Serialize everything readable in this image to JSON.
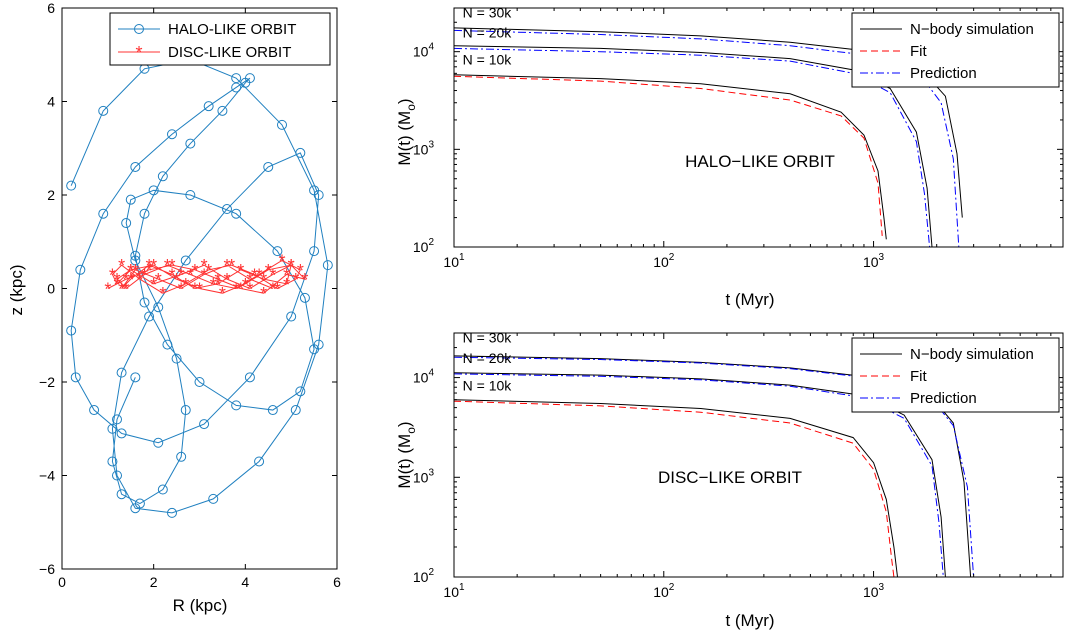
{
  "colors": {
    "halo": "#2080c0",
    "disc": "#ff3333",
    "nbody": "#000000",
    "fit": "#ff0000",
    "prediction": "#0000ff"
  },
  "chart_data": [
    {
      "id": "orbits",
      "type": "line",
      "xlabel": "R (kpc)",
      "ylabel": "z (kpc)",
      "xlim": [
        0,
        6
      ],
      "ylim": [
        -6,
        6
      ],
      "xticks": [
        0,
        2,
        4,
        6
      ],
      "yticks": [
        -6,
        -4,
        -2,
        0,
        2,
        4,
        6
      ],
      "legend_position": "top-right",
      "series": [
        {
          "name": "HALO-LIKE ORBIT",
          "marker": "circle",
          "x": [
            0.2,
            0.9,
            1.8,
            2.8,
            3.8,
            4.8,
            5.5,
            5.8,
            5.6,
            5.1,
            4.3,
            3.3,
            2.4,
            1.6,
            1.2,
            1.1,
            1.3,
            1.9,
            2.7,
            3.6,
            4.5,
            5.2,
            5.6,
            5.5,
            5.0,
            4.1,
            3.1,
            2.1,
            1.3,
            0.7,
            0.3,
            0.2,
            0.4,
            0.9,
            1.6,
            2.4,
            3.2,
            3.8,
            4.1,
            4.0,
            3.5,
            2.8,
            2.2,
            1.8,
            1.6,
            1.8,
            2.3,
            3.0,
            3.8,
            4.6,
            5.2,
            5.5,
            5.3,
            4.7,
            3.8,
            2.8,
            2.0,
            1.5,
            1.4,
            1.6,
            2.1,
            2.5,
            2.7,
            2.6,
            2.2,
            1.7,
            1.3,
            1.1,
            1.2,
            1.6
          ],
          "y": [
            2.2,
            3.8,
            4.7,
            4.9,
            4.5,
            3.5,
            2.1,
            0.5,
            -1.2,
            -2.6,
            -3.7,
            -4.5,
            -4.8,
            -4.7,
            -4.0,
            -3.0,
            -1.8,
            -0.6,
            0.6,
            1.7,
            2.6,
            2.9,
            2.0,
            0.8,
            -0.6,
            -1.9,
            -2.9,
            -3.3,
            -3.1,
            -2.6,
            -1.9,
            -0.9,
            0.4,
            1.6,
            2.6,
            3.3,
            3.9,
            4.3,
            4.5,
            4.4,
            3.8,
            3.1,
            2.4,
            1.6,
            0.7,
            -0.3,
            -1.2,
            -2.0,
            -2.5,
            -2.6,
            -2.2,
            -1.3,
            -0.2,
            0.8,
            1.6,
            2.0,
            2.1,
            1.9,
            1.4,
            0.6,
            -0.4,
            -1.5,
            -2.6,
            -3.6,
            -4.3,
            -4.6,
            -4.4,
            -3.7,
            -2.8,
            -1.9
          ]
        },
        {
          "name": "DISC-LIKE ORBIT",
          "marker": "star",
          "x": [
            1.0,
            1.4,
            1.9,
            2.4,
            2.9,
            3.4,
            3.9,
            4.4,
            4.9,
            5.3,
            5.0,
            4.5,
            4.0,
            3.5,
            3.0,
            2.5,
            2.0,
            1.5,
            1.2,
            1.1,
            1.3,
            1.7,
            2.2,
            2.7,
            3.2,
            3.7,
            4.2,
            4.7,
            5.1,
            5.2,
            4.8,
            4.3,
            3.8,
            3.3,
            2.8,
            2.3,
            1.8,
            1.4,
            1.2,
            1.5,
            2.0,
            2.6,
            3.1,
            3.6,
            4.1,
            4.6,
            5.0,
            4.9,
            4.4,
            3.9,
            3.4,
            2.9,
            2.4,
            1.9,
            1.5,
            1.3,
            1.6,
            2.1,
            2.6,
            3.1,
            3.6,
            4.1,
            4.6
          ],
          "y": [
            0.0,
            0.2,
            0.4,
            0.5,
            0.4,
            0.2,
            0.0,
            -0.1,
            0.3,
            0.2,
            0.5,
            0.4,
            0.1,
            -0.1,
            0.0,
            0.2,
            0.5,
            0.4,
            0.1,
            0.3,
            0.5,
            0.2,
            -0.1,
            0.1,
            0.4,
            0.5,
            0.3,
            0.0,
            0.2,
            0.4,
            0.6,
            0.3,
            0.0,
            0.1,
            0.3,
            0.5,
            0.3,
            0.0,
            0.2,
            0.4,
            0.1,
            0.3,
            0.5,
            0.2,
            0.0,
            0.3,
            0.5,
            0.1,
            0.2,
            0.4,
            0.1,
            0.0,
            0.3,
            0.5,
            0.2,
            0.0,
            0.4,
            0.2,
            0.0,
            0.3,
            0.5,
            0.2,
            0.0
          ]
        }
      ]
    },
    {
      "id": "halo",
      "type": "line",
      "annotation": "HALO−LIKE ORBIT",
      "xlabel": "t (Myr)",
      "ylabel": "M(t) (M",
      "ylabel_sub": "o",
      "ylabel_end": ")",
      "xscale": "log",
      "yscale": "log",
      "xlim": [
        10,
        8000
      ],
      "ylim": [
        100,
        28000
      ],
      "xticks": [
        10,
        100,
        1000
      ],
      "xtick_labels": [
        "10",
        "10",
        "10"
      ],
      "xtick_exps": [
        "1",
        "2",
        "3"
      ],
      "yticks": [
        100,
        1000,
        10000
      ],
      "ytick_labels": [
        "10",
        "10",
        "10"
      ],
      "ytick_exps": [
        "2",
        "3",
        "4"
      ],
      "legend_position": "top-right",
      "n_labels": [
        {
          "text": "N = 30k",
          "t": 11,
          "m": 22500
        },
        {
          "text": "N = 20k",
          "t": 11,
          "m": 14000
        },
        {
          "text": "N = 10k",
          "t": 11,
          "m": 7400
        }
      ],
      "series": [
        {
          "name": "N−body simulation",
          "style": "solid",
          "label_group": "N = 30k",
          "t": [
            10,
            50,
            150,
            400,
            1000,
            1600,
            2200,
            2500,
            2650
          ],
          "m": [
            17500,
            16000,
            14500,
            12500,
            10000,
            7500,
            3500,
            900,
            200
          ]
        },
        {
          "name": "N−body simulation",
          "style": "solid",
          "label_group": "N = 20k",
          "t": [
            10,
            50,
            150,
            400,
            800,
            1200,
            1600,
            1800,
            1900
          ],
          "m": [
            11500,
            10800,
            9800,
            8500,
            6500,
            4200,
            1500,
            400,
            100
          ]
        },
        {
          "name": "N−body simulation",
          "style": "solid",
          "label_group": "N = 10k",
          "t": [
            10,
            50,
            150,
            400,
            700,
            900,
            1050,
            1120,
            1150
          ],
          "m": [
            5800,
            5300,
            4700,
            3700,
            2400,
            1400,
            600,
            200,
            120
          ]
        },
        {
          "name": "Fit",
          "style": "dashed",
          "label_group": "N = 10k",
          "t": [
            10,
            50,
            150,
            400,
            700,
            900,
            1050,
            1100
          ],
          "m": [
            5600,
            5000,
            4200,
            3200,
            2200,
            1300,
            450,
            130
          ]
        },
        {
          "name": "Prediction",
          "style": "dashdot",
          "label_group": "N = 30k",
          "t": [
            10,
            50,
            150,
            400,
            1000,
            1600,
            2100,
            2400,
            2550
          ],
          "m": [
            16500,
            15000,
            13500,
            11500,
            9000,
            6500,
            3000,
            800,
            100
          ]
        },
        {
          "name": "Prediction",
          "style": "dashdot",
          "label_group": "N = 20k",
          "t": [
            10,
            50,
            150,
            400,
            800,
            1200,
            1600,
            1750,
            1850
          ],
          "m": [
            10800,
            10000,
            9200,
            8000,
            6000,
            3800,
            1200,
            350,
            100
          ]
        }
      ]
    },
    {
      "id": "disc",
      "type": "line",
      "annotation": "DISC−LIKE ORBIT",
      "xlabel": "t (Myr)",
      "ylabel": "M(t) (M",
      "ylabel_sub": "o",
      "ylabel_end": ")",
      "xscale": "log",
      "yscale": "log",
      "xlim": [
        10,
        8000
      ],
      "ylim": [
        100,
        28000
      ],
      "xticks": [
        10,
        100,
        1000
      ],
      "xtick_labels": [
        "10",
        "10",
        "10"
      ],
      "xtick_exps": [
        "1",
        "2",
        "3"
      ],
      "yticks": [
        100,
        1000,
        10000
      ],
      "ytick_labels": [
        "10",
        "10",
        "10"
      ],
      "ytick_exps": [
        "2",
        "3",
        "4"
      ],
      "legend_position": "top-right",
      "n_labels": [
        {
          "text": "N = 30k",
          "t": 11,
          "m": 22500
        },
        {
          "text": "N = 20k",
          "t": 11,
          "m": 14000
        },
        {
          "text": "N = 10k",
          "t": 11,
          "m": 7400
        }
      ],
      "series": [
        {
          "name": "N−body simulation",
          "style": "solid",
          "label_group": "N = 30k",
          "t": [
            10,
            50,
            150,
            400,
            1000,
            1800,
            2400,
            2700,
            2900
          ],
          "m": [
            16500,
            15500,
            14200,
            12500,
            10000,
            7200,
            3500,
            900,
            100
          ]
        },
        {
          "name": "N−body simulation",
          "style": "solid",
          "label_group": "N = 20k",
          "t": [
            10,
            50,
            150,
            400,
            900,
            1400,
            1900,
            2100,
            2200
          ],
          "m": [
            11200,
            10600,
            9700,
            8400,
            6600,
            4200,
            1500,
            400,
            100
          ]
        },
        {
          "name": "N−body simulation",
          "style": "solid",
          "label_group": "N = 10k",
          "t": [
            10,
            50,
            150,
            400,
            800,
            1000,
            1150,
            1250,
            1300
          ],
          "m": [
            6000,
            5500,
            4900,
            3900,
            2500,
            1400,
            600,
            200,
            100
          ]
        },
        {
          "name": "Fit",
          "style": "dashed",
          "label_group": "N = 10k",
          "t": [
            10,
            50,
            150,
            400,
            800,
            1000,
            1150,
            1220,
            1250
          ],
          "m": [
            5800,
            5200,
            4500,
            3500,
            2200,
            1200,
            450,
            150,
            100
          ]
        },
        {
          "name": "Prediction",
          "style": "dashdot",
          "label_group": "N = 30k",
          "t": [
            10,
            50,
            150,
            400,
            1000,
            1800,
            2400,
            2800,
            3000
          ],
          "m": [
            16000,
            15200,
            14000,
            12300,
            9800,
            7000,
            3300,
            800,
            100
          ]
        },
        {
          "name": "Prediction",
          "style": "dashdot",
          "label_group": "N = 20k",
          "t": [
            10,
            50,
            150,
            400,
            900,
            1400,
            1900,
            2050,
            2150
          ],
          "m": [
            10900,
            10300,
            9500,
            8200,
            6300,
            3900,
            1300,
            350,
            100
          ]
        }
      ]
    }
  ]
}
